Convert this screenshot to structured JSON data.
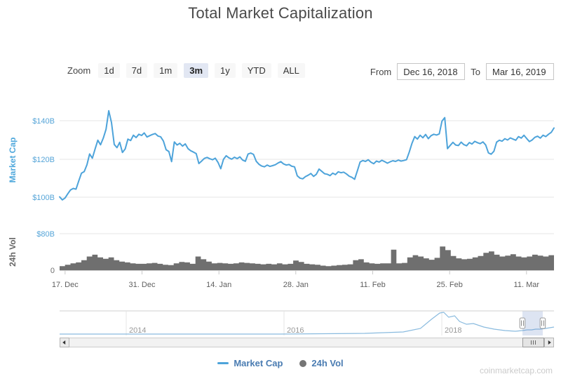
{
  "title": "Total Market Capitalization",
  "toolbar": {
    "zoom_label": "Zoom",
    "buttons": [
      "1d",
      "7d",
      "1m",
      "3m",
      "1y",
      "YTD",
      "ALL"
    ],
    "selected": "3m",
    "from_label": "From",
    "from_value": "Dec 16, 2018",
    "to_label": "To",
    "to_value": "Mar 16, 2019"
  },
  "legend": {
    "items": [
      {
        "label": "Market Cap",
        "marker": "line",
        "color": "#4da3da"
      },
      {
        "label": "24h Vol",
        "marker": "circle",
        "color": "#757575"
      }
    ]
  },
  "watermark": "coinmarketcap.com",
  "navigator": {
    "year_labels": [
      "2014",
      "2016",
      "2018"
    ],
    "series": [
      [
        0,
        0.057
      ],
      [
        0.447,
        0.057
      ],
      [
        0.617,
        0.086
      ],
      [
        0.695,
        0.143
      ],
      [
        0.73,
        0.286
      ],
      [
        0.752,
        0.657
      ],
      [
        0.769,
        0.914
      ],
      [
        0.777,
        0.943
      ],
      [
        0.787,
        0.743
      ],
      [
        0.799,
        0.8
      ],
      [
        0.809,
        0.571
      ],
      [
        0.823,
        0.457
      ],
      [
        0.837,
        0.486
      ],
      [
        0.858,
        0.343
      ],
      [
        0.879,
        0.257
      ],
      [
        0.901,
        0.2
      ],
      [
        0.922,
        0.171
      ],
      [
        0.936,
        0.2
      ],
      [
        0.946,
        0.229
      ],
      [
        0.955,
        0.229
      ],
      [
        0.963,
        0.257
      ],
      [
        0.972,
        0.257
      ],
      [
        0.983,
        0.286
      ],
      [
        1.0,
        0.343
      ]
    ]
  },
  "chart_data": [
    {
      "type": "line",
      "name": "Market Cap",
      "ylabel": "Market Cap",
      "yticks": [
        "$100B",
        "$120B",
        "$140B"
      ],
      "ylim": [
        95,
        150
      ],
      "unit": "$B",
      "color": "#4da3da",
      "axis_label_color": "#56a5d8",
      "x_start": "Dec 16, 2018",
      "x_end": "Mar 16, 2019",
      "x_ticks": [
        "17. Dec",
        "31. Dec",
        "14. Jan",
        "28. Jan",
        "11. Feb",
        "25. Feb",
        "11. Mar"
      ],
      "points_per_day": 2,
      "values": [
        100.2,
        98.6,
        99.6,
        101.8,
        103.8,
        104.6,
        104.2,
        108.5,
        112.6,
        113.4,
        117.0,
        122.6,
        120.4,
        125.2,
        129.8,
        127.4,
        130.9,
        135.5,
        145.2,
        139.0,
        127.6,
        125.9,
        128.7,
        123.4,
        125.2,
        130.4,
        129.6,
        132.4,
        131.2,
        132.9,
        132.3,
        133.6,
        131.5,
        132.2,
        132.8,
        133.3,
        132.0,
        131.6,
        129.4,
        124.8,
        123.9,
        118.6,
        128.9,
        127.3,
        128.2,
        126.7,
        127.9,
        125.4,
        124.3,
        123.6,
        122.8,
        117.6,
        118.9,
        120.3,
        120.8,
        120.1,
        119.6,
        120.4,
        118.2,
        114.9,
        119.8,
        121.7,
        120.6,
        119.9,
        120.9,
        120.2,
        121.1,
        119.4,
        118.8,
        122.6,
        123.1,
        122.4,
        118.8,
        117.2,
        116.3,
        115.9,
        116.8,
        116.1,
        116.5,
        117.0,
        117.9,
        118.6,
        117.4,
        116.8,
        117.1,
        116.2,
        115.9,
        111.2,
        110.0,
        109.6,
        110.8,
        111.5,
        112.4,
        110.9,
        112.0,
        114.7,
        113.5,
        112.3,
        112.0,
        111.3,
        112.6,
        111.8,
        113.3,
        112.8,
        113.1,
        112.2,
        111.0,
        110.4,
        109.4,
        113.8,
        118.4,
        119.2,
        118.7,
        119.6,
        118.3,
        117.5,
        118.9,
        118.4,
        119.3,
        118.6,
        117.8,
        118.5,
        119.1,
        118.7,
        119.4,
        118.9,
        119.2,
        119.6,
        123.6,
        128.2,
        131.7,
        130.4,
        132.4,
        131.1,
        132.8,
        130.6,
        132.2,
        132.9,
        132.5,
        133.1,
        139.8,
        141.6,
        125.4,
        127.1,
        128.7,
        127.3,
        127.0,
        128.8,
        127.5,
        126.9,
        128.6,
        127.8,
        129.2,
        128.5,
        128.0,
        128.9,
        127.3,
        123.2,
        122.5,
        124.0,
        128.8,
        129.8,
        129.3,
        130.6,
        129.9,
        131.0,
        130.4,
        129.8,
        131.7,
        130.9,
        132.4,
        130.7,
        129.1,
        129.9,
        131.3,
        131.9,
        130.9,
        132.4,
        131.7,
        132.9,
        133.9,
        136.2
      ]
    },
    {
      "type": "area",
      "name": "24h Vol",
      "ylabel": "24h Vol",
      "yticks": [
        "0",
        "$80B"
      ],
      "ylim": [
        0,
        80
      ],
      "unit": "$B",
      "color": "#6f6f6f",
      "points_per_day": 1,
      "values": [
        9,
        12,
        15,
        17,
        22,
        30,
        34,
        28,
        25,
        28,
        22,
        19,
        17,
        15,
        14,
        14,
        15,
        16,
        14,
        12,
        11,
        15,
        18,
        17,
        14,
        30,
        24,
        19,
        15,
        16,
        15,
        14,
        15,
        17,
        16,
        15,
        14,
        13,
        14,
        13,
        15,
        13,
        14,
        21,
        18,
        14,
        13,
        12,
        10,
        9,
        10,
        11,
        12,
        13,
        22,
        24,
        17,
        15,
        14,
        15,
        15,
        45,
        15,
        16,
        28,
        33,
        30,
        26,
        23,
        27,
        52,
        44,
        31,
        26,
        24,
        25,
        28,
        31,
        38,
        41,
        34,
        30,
        32,
        35,
        30,
        28,
        30,
        34,
        32,
        30,
        33
      ]
    }
  ]
}
